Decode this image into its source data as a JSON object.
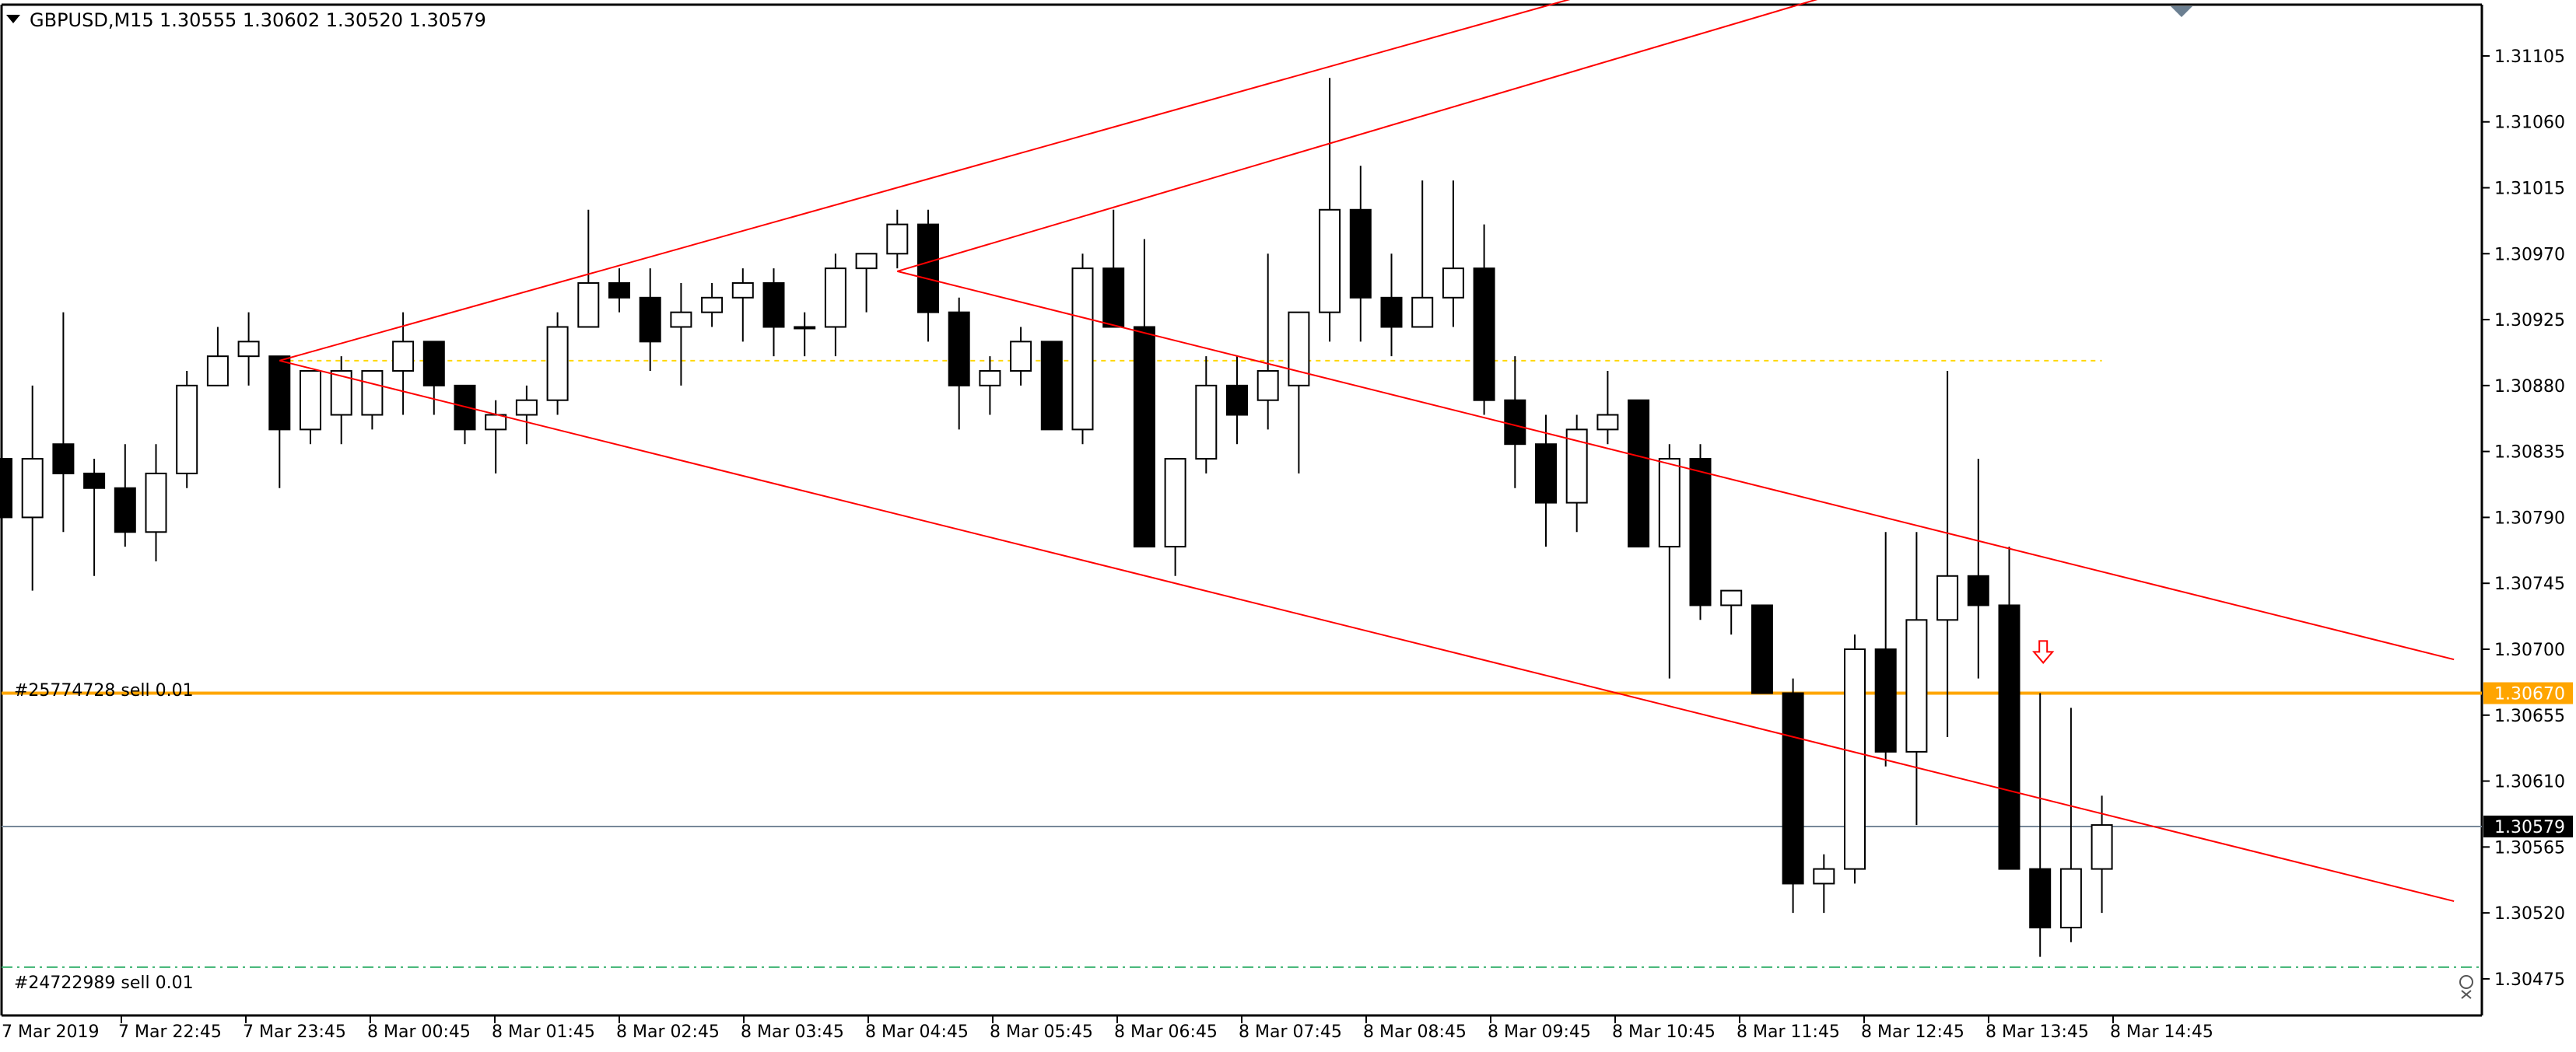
{
  "header": {
    "symbol_tf": "GBPUSD,M15",
    "ohlc": "1.30555 1.30602 1.30520 1.30579"
  },
  "colors": {
    "background": "#ffffff",
    "candle_stroke": "#000000",
    "bull_body": "#ffffff",
    "bear_body": "#000000",
    "trendline": "#ff0000",
    "order_line": "#ffa500",
    "bid_line": "#778899",
    "sl_line": "#3cb371",
    "hline_dotted": "#ffd700",
    "axis": "#000000"
  },
  "icons": {
    "dropdown": "triangle-down-icon",
    "down_arrow": "down-arrow-icon",
    "close_marker": "close-icon",
    "grid_marker": "triangle-marker-icon"
  },
  "chart_data": {
    "type": "candlestick",
    "symbol": "GBPUSD",
    "timeframe": "M15",
    "ylim": [
      1.3045,
      1.3114
    ],
    "y_ticks": [
      "1.31105",
      "1.31060",
      "1.31015",
      "1.30970",
      "1.30925",
      "1.30880",
      "1.30835",
      "1.30790",
      "1.30745",
      "1.30700",
      "1.30655",
      "1.30610",
      "1.30565",
      "1.30520",
      "1.30475"
    ],
    "x_ticks": [
      "7 Mar 2019",
      "7 Mar 22:45",
      "7 Mar 23:45",
      "8 Mar 00:45",
      "8 Mar 01:45",
      "8 Mar 02:45",
      "8 Mar 03:45",
      "8 Mar 04:45",
      "8 Mar 05:45",
      "8 Mar 06:45",
      "8 Mar 07:45",
      "8 Mar 08:45",
      "8 Mar 09:45",
      "8 Mar 10:45",
      "8 Mar 11:45",
      "8 Mar 12:45",
      "8 Mar 13:45",
      "8 Mar 14:45"
    ],
    "candles": [
      {
        "o": 1.3083,
        "h": 1.3089,
        "l": 1.3077,
        "c": 1.3079
      },
      {
        "o": 1.3079,
        "h": 1.3088,
        "l": 1.3074,
        "c": 1.3083
      },
      {
        "o": 1.3084,
        "h": 1.3093,
        "l": 1.3078,
        "c": 1.3082
      },
      {
        "o": 1.3082,
        "h": 1.3083,
        "l": 1.3075,
        "c": 1.3081
      },
      {
        "o": 1.3081,
        "h": 1.3084,
        "l": 1.3077,
        "c": 1.3078
      },
      {
        "o": 1.3078,
        "h": 1.3084,
        "l": 1.3076,
        "c": 1.3082
      },
      {
        "o": 1.3082,
        "h": 1.3089,
        "l": 1.3081,
        "c": 1.3088
      },
      {
        "o": 1.3088,
        "h": 1.3092,
        "l": 1.3088,
        "c": 1.309
      },
      {
        "o": 1.309,
        "h": 1.3093,
        "l": 1.3088,
        "c": 1.3091
      },
      {
        "o": 1.309,
        "h": 1.309,
        "l": 1.3081,
        "c": 1.3085
      },
      {
        "o": 1.3085,
        "h": 1.3089,
        "l": 1.3084,
        "c": 1.3089
      },
      {
        "o": 1.3086,
        "h": 1.309,
        "l": 1.3084,
        "c": 1.3089
      },
      {
        "o": 1.3086,
        "h": 1.3089,
        "l": 1.3085,
        "c": 1.3089
      },
      {
        "o": 1.3089,
        "h": 1.3093,
        "l": 1.3086,
        "c": 1.3091
      },
      {
        "o": 1.3091,
        "h": 1.3091,
        "l": 1.3086,
        "c": 1.3088
      },
      {
        "o": 1.3088,
        "h": 1.3088,
        "l": 1.3084,
        "c": 1.3085
      },
      {
        "o": 1.3085,
        "h": 1.3087,
        "l": 1.3082,
        "c": 1.3086
      },
      {
        "o": 1.3086,
        "h": 1.3088,
        "l": 1.3084,
        "c": 1.3087
      },
      {
        "o": 1.3087,
        "h": 1.3093,
        "l": 1.3086,
        "c": 1.3092
      },
      {
        "o": 1.3092,
        "h": 1.31,
        "l": 1.3092,
        "c": 1.3095
      },
      {
        "o": 1.3095,
        "h": 1.3096,
        "l": 1.3093,
        "c": 1.3094
      },
      {
        "o": 1.3094,
        "h": 1.3096,
        "l": 1.3089,
        "c": 1.3091
      },
      {
        "o": 1.3092,
        "h": 1.3095,
        "l": 1.3088,
        "c": 1.3093
      },
      {
        "o": 1.3093,
        "h": 1.3095,
        "l": 1.3092,
        "c": 1.3094
      },
      {
        "o": 1.3094,
        "h": 1.3096,
        "l": 1.3091,
        "c": 1.3095
      },
      {
        "o": 1.3095,
        "h": 1.3096,
        "l": 1.309,
        "c": 1.3092
      },
      {
        "o": 1.3092,
        "h": 1.3093,
        "l": 1.309,
        "c": 1.3092
      },
      {
        "o": 1.3092,
        "h": 1.3097,
        "l": 1.309,
        "c": 1.3096
      },
      {
        "o": 1.3096,
        "h": 1.3097,
        "l": 1.3093,
        "c": 1.3097
      },
      {
        "o": 1.3097,
        "h": 1.31,
        "l": 1.3096,
        "c": 1.3099
      },
      {
        "o": 1.3099,
        "h": 1.31,
        "l": 1.3091,
        "c": 1.3093
      },
      {
        "o": 1.3093,
        "h": 1.3094,
        "l": 1.3085,
        "c": 1.3088
      },
      {
        "o": 1.3088,
        "h": 1.309,
        "l": 1.3086,
        "c": 1.3089
      },
      {
        "o": 1.3089,
        "h": 1.3092,
        "l": 1.3088,
        "c": 1.3091
      },
      {
        "o": 1.3091,
        "h": 1.3091,
        "l": 1.3085,
        "c": 1.3085
      },
      {
        "o": 1.3085,
        "h": 1.3097,
        "l": 1.3084,
        "c": 1.3096
      },
      {
        "o": 1.3096,
        "h": 1.31,
        "l": 1.3092,
        "c": 1.3092
      },
      {
        "o": 1.3092,
        "h": 1.3098,
        "l": 1.3077,
        "c": 1.3077
      },
      {
        "o": 1.3077,
        "h": 1.3083,
        "l": 1.3075,
        "c": 1.3083
      },
      {
        "o": 1.3083,
        "h": 1.309,
        "l": 1.3082,
        "c": 1.3088
      },
      {
        "o": 1.3088,
        "h": 1.309,
        "l": 1.3084,
        "c": 1.3086
      },
      {
        "o": 1.3087,
        "h": 1.3097,
        "l": 1.3085,
        "c": 1.3089
      },
      {
        "o": 1.3088,
        "h": 1.3093,
        "l": 1.3082,
        "c": 1.3093
      },
      {
        "o": 1.3093,
        "h": 1.3109,
        "l": 1.3091,
        "c": 1.31
      },
      {
        "o": 1.31,
        "h": 1.3103,
        "l": 1.3091,
        "c": 1.3094
      },
      {
        "o": 1.3094,
        "h": 1.3097,
        "l": 1.309,
        "c": 1.3092
      },
      {
        "o": 1.3092,
        "h": 1.3102,
        "l": 1.3092,
        "c": 1.3094
      },
      {
        "o": 1.3094,
        "h": 1.3102,
        "l": 1.3092,
        "c": 1.3096
      },
      {
        "o": 1.3096,
        "h": 1.3099,
        "l": 1.3086,
        "c": 1.3087
      },
      {
        "o": 1.3087,
        "h": 1.309,
        "l": 1.3081,
        "c": 1.3084
      },
      {
        "o": 1.3084,
        "h": 1.3086,
        "l": 1.3077,
        "c": 1.308
      },
      {
        "o": 1.308,
        "h": 1.3086,
        "l": 1.3078,
        "c": 1.3085
      },
      {
        "o": 1.3085,
        "h": 1.3089,
        "l": 1.3084,
        "c": 1.3086
      },
      {
        "o": 1.3087,
        "h": 1.3087,
        "l": 1.3077,
        "c": 1.3077
      },
      {
        "o": 1.3077,
        "h": 1.3084,
        "l": 1.3068,
        "c": 1.3083
      },
      {
        "o": 1.3083,
        "h": 1.3084,
        "l": 1.3072,
        "c": 1.3073
      },
      {
        "o": 1.3073,
        "h": 1.3074,
        "l": 1.3071,
        "c": 1.3074
      },
      {
        "o": 1.3073,
        "h": 1.3073,
        "l": 1.3067,
        "c": 1.3067
      },
      {
        "o": 1.3067,
        "h": 1.3068,
        "l": 1.3052,
        "c": 1.3054
      },
      {
        "o": 1.3054,
        "h": 1.3056,
        "l": 1.3052,
        "c": 1.3055
      },
      {
        "o": 1.3055,
        "h": 1.3071,
        "l": 1.3054,
        "c": 1.307
      },
      {
        "o": 1.307,
        "h": 1.3078,
        "l": 1.3062,
        "c": 1.3063
      },
      {
        "o": 1.3063,
        "h": 1.3078,
        "l": 1.3058,
        "c": 1.3072
      },
      {
        "o": 1.3072,
        "h": 1.3089,
        "l": 1.3064,
        "c": 1.3075
      },
      {
        "o": 1.3075,
        "h": 1.3083,
        "l": 1.3068,
        "c": 1.3073
      },
      {
        "o": 1.3073,
        "h": 1.3077,
        "l": 1.3055,
        "c": 1.3055
      },
      {
        "o": 1.3055,
        "h": 1.3067,
        "l": 1.3049,
        "c": 1.3051
      },
      {
        "o": 1.3051,
        "h": 1.3066,
        "l": 1.305,
        "c": 1.3055
      },
      {
        "o": 1.3055,
        "h": 1.306,
        "l": 1.3052,
        "c": 1.3058
      }
    ],
    "order_lines": [
      {
        "label": "#25774728 sell 0.01",
        "price": 1.3067,
        "price_label": "1.30670"
      },
      {
        "label": "#24722989 sell 0.01",
        "price": 1.30483
      }
    ],
    "bid_line": {
      "price": 1.30579,
      "price_label": "1.30579"
    },
    "dotted_line": {
      "price": 1.30897
    },
    "trendlines": [
      {
        "from": {
          "i": 9,
          "p": 1.30897
        },
        "to": {
          "i": 51,
          "p": 1.31145
        }
      },
      {
        "from": {
          "i": 29,
          "p": 1.30958
        },
        "to": {
          "i": 59,
          "p": 1.31145
        }
      },
      {
        "from": {
          "i": 9,
          "p": 1.30897
        },
        "to": {
          "i": 79.4,
          "p": 1.30528
        }
      },
      {
        "from": {
          "i": 29,
          "p": 1.30958
        },
        "to": {
          "i": 79.4,
          "p": 1.30693
        }
      }
    ],
    "arrow_marker": {
      "i": 66,
      "p": 1.30695
    }
  }
}
